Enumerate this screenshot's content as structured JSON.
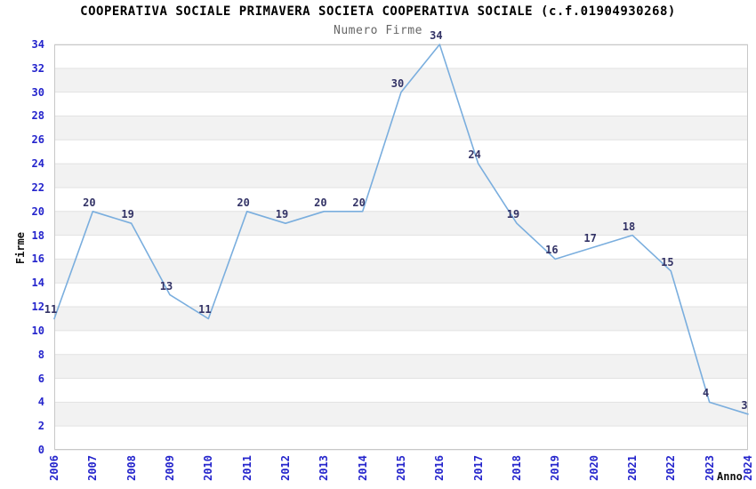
{
  "chart_data": {
    "type": "line",
    "title": "COOPERATIVA SOCIALE PRIMAVERA SOCIETA COOPERATIVA SOCIALE (c.f.01904930268)",
    "subtitle": "Numero Firme",
    "xlabel": "Anno",
    "ylabel": "Firme",
    "categories": [
      "2006",
      "2007",
      "2008",
      "2009",
      "2010",
      "2011",
      "2012",
      "2013",
      "2014",
      "2015",
      "2016",
      "2017",
      "2018",
      "2019",
      "2020",
      "2021",
      "2022",
      "2023",
      "2024"
    ],
    "values": [
      11,
      20,
      19,
      13,
      11,
      20,
      19,
      20,
      20,
      30,
      34,
      24,
      19,
      16,
      17,
      18,
      15,
      4,
      3
    ],
    "ylim": [
      0,
      34
    ],
    "ytick_step": 2,
    "grid": "horizontal-only",
    "legend": "none",
    "point_labels_visible": true,
    "colors": {
      "line": "#7aaede",
      "tick_label": "#2424cc",
      "value_label": "#333366",
      "band_fill": "#f2f2f2",
      "grid_line": "#e2e2e2",
      "plot_border": "#c8c8c8",
      "title": "#000000",
      "subtitle": "#666666",
      "axis_title": "#111111",
      "background": "#ffffff"
    }
  }
}
